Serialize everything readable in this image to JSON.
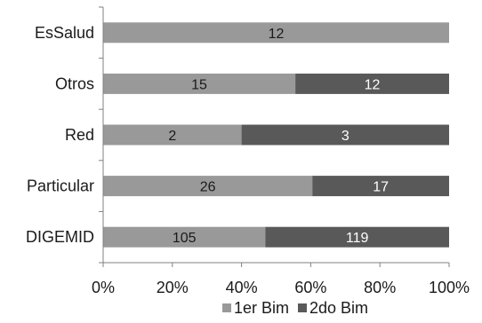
{
  "chart_data": {
    "type": "bar",
    "orientation": "horizontal",
    "stacked": "percent",
    "categories": [
      "EsSalud",
      "Otros",
      "Red",
      "Particular",
      "DIGEMID"
    ],
    "series": [
      {
        "name": "1er Bim",
        "values": [
          12,
          15,
          2,
          26,
          105
        ]
      },
      {
        "name": "2do Bim",
        "values": [
          0,
          12,
          3,
          17,
          119
        ]
      }
    ],
    "x_ticks": [
      "0%",
      "20%",
      "40%",
      "60%",
      "80%",
      "100%"
    ],
    "xlim": [
      0,
      100
    ],
    "grid": false,
    "legend_position": "bottom",
    "colors": {
      "series": [
        "#999999",
        "#595959"
      ],
      "labels": [
        "#1a1a1a",
        "#ffffff"
      ]
    }
  }
}
